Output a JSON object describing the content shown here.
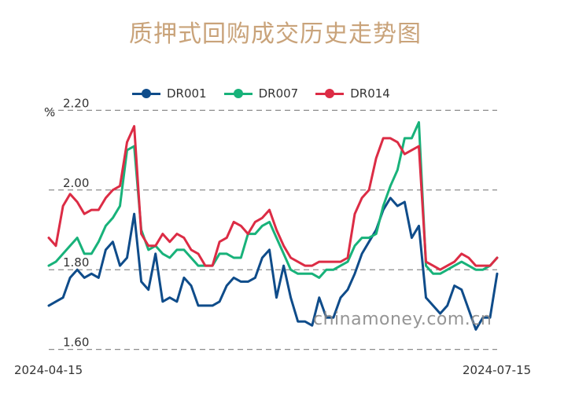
{
  "chart_data": {
    "type": "line",
    "title": "质押式回购成交历史走势图",
    "y_unit": "%",
    "ylim": [
      1.55,
      2.25
    ],
    "yticks": [
      "2.20",
      "2.00",
      "1.80",
      "1.60"
    ],
    "ytick_values": [
      2.2,
      2.0,
      1.8,
      1.6
    ],
    "x_start_label": "2024-04-15",
    "x_end_label": "2024-07-15",
    "grid": true,
    "legend_position": "top",
    "series": [
      {
        "name": "DR001",
        "color": "#0f4c8a",
        "values": [
          1.71,
          1.72,
          1.73,
          1.78,
          1.8,
          1.78,
          1.79,
          1.78,
          1.85,
          1.87,
          1.81,
          1.83,
          1.94,
          1.77,
          1.75,
          1.84,
          1.72,
          1.73,
          1.72,
          1.78,
          1.76,
          1.71,
          1.71,
          1.71,
          1.72,
          1.76,
          1.78,
          1.77,
          1.77,
          1.78,
          1.83,
          1.85,
          1.73,
          1.81,
          1.73,
          1.67,
          1.67,
          1.66,
          1.73,
          1.68,
          1.68,
          1.73,
          1.75,
          1.79,
          1.84,
          1.87,
          1.9,
          1.95,
          1.98,
          1.96,
          1.97,
          1.88,
          1.91,
          1.73,
          1.71,
          1.69,
          1.71,
          1.76,
          1.75,
          1.7,
          1.65,
          1.68,
          1.68,
          1.79
        ]
      },
      {
        "name": "DR007",
        "color": "#18b27a",
        "values": [
          1.81,
          1.82,
          1.84,
          1.86,
          1.88,
          1.84,
          1.84,
          1.87,
          1.91,
          1.93,
          1.96,
          2.1,
          2.11,
          1.9,
          1.85,
          1.86,
          1.84,
          1.83,
          1.85,
          1.85,
          1.83,
          1.81,
          1.81,
          1.81,
          1.84,
          1.84,
          1.83,
          1.83,
          1.89,
          1.89,
          1.91,
          1.92,
          1.88,
          1.84,
          1.8,
          1.79,
          1.79,
          1.79,
          1.78,
          1.8,
          1.8,
          1.81,
          1.82,
          1.86,
          1.88,
          1.88,
          1.89,
          1.96,
          2.01,
          2.05,
          2.13,
          2.13,
          2.17,
          1.81,
          1.79,
          1.79,
          1.8,
          1.81,
          1.82,
          1.81,
          1.8,
          1.8,
          1.81,
          1.83
        ]
      },
      {
        "name": "DR014",
        "color": "#dc2c45",
        "values": [
          1.88,
          1.86,
          1.96,
          1.99,
          1.97,
          1.94,
          1.95,
          1.95,
          1.98,
          2.0,
          2.01,
          2.12,
          2.16,
          1.89,
          1.86,
          1.86,
          1.89,
          1.87,
          1.89,
          1.88,
          1.85,
          1.84,
          1.81,
          1.81,
          1.87,
          1.88,
          1.92,
          1.91,
          1.89,
          1.92,
          1.93,
          1.95,
          1.9,
          1.86,
          1.83,
          1.82,
          1.81,
          1.81,
          1.82,
          1.82,
          1.82,
          1.82,
          1.83,
          1.94,
          1.98,
          2.0,
          2.08,
          2.13,
          2.13,
          2.12,
          2.09,
          2.1,
          2.11,
          1.82,
          1.81,
          1.8,
          1.81,
          1.82,
          1.84,
          1.83,
          1.81,
          1.81,
          1.81,
          1.83
        ]
      }
    ]
  },
  "watermark": "chinamoney.com.cn"
}
